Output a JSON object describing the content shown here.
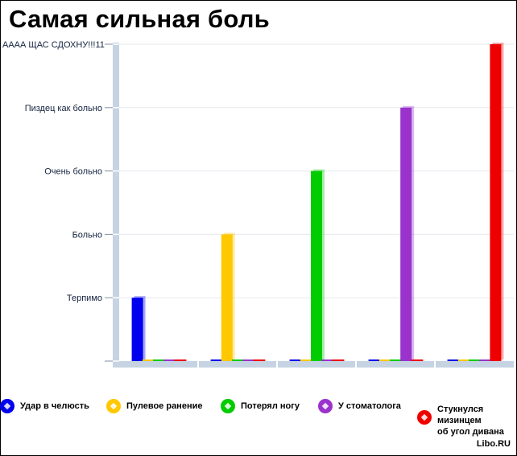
{
  "title": "Самая сильная боль",
  "watermark": "Libo.RU",
  "chart_data": {
    "type": "bar",
    "categories": [
      "Удар в челюсть",
      "Пулевое ранение",
      "Потерял ногу",
      "У стоматолога",
      "Стукнулся\nмизинцем\nоб угол дивана"
    ],
    "y_tick_labels": [
      "Терпимо",
      "Больно",
      "Очень больно",
      "Пиздец как больно",
      "АААА ЩАС СДОХНУ!!!11"
    ],
    "ylim": [
      0,
      5
    ],
    "grid": true,
    "legend_position": "bottom",
    "series": [
      {
        "name": "Удар в челюсть",
        "color": "#0000ee",
        "values": [
          1,
          0,
          0,
          0,
          0
        ]
      },
      {
        "name": "Пулевое ранение",
        "color": "#ffc800",
        "values": [
          0,
          2,
          0,
          0,
          0
        ]
      },
      {
        "name": "Потерял ногу",
        "color": "#00cc00",
        "values": [
          0,
          0,
          3,
          0,
          0
        ]
      },
      {
        "name": "У стоматолога",
        "color": "#9933cc",
        "values": [
          0,
          0,
          0,
          4,
          0
        ]
      },
      {
        "name": "Стукнулся\nмизинцем\nоб угол дивана",
        "color": "#ee0000",
        "values": [
          0,
          0,
          0,
          0,
          5
        ]
      }
    ]
  }
}
